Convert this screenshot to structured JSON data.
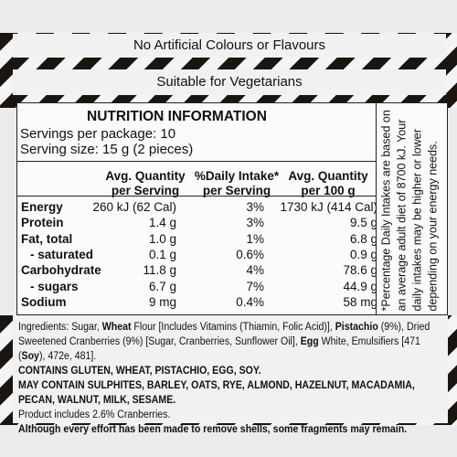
{
  "banner_top": "No Artificial Colours or Flavours",
  "banner_second": "Suitable for Vegetarians",
  "nutrition": {
    "title": "NUTRITION INFORMATION",
    "servings": "Servings per package: 10",
    "serving_size": "Serving size: 15 g (2 pieces)",
    "headers": [
      [
        "Avg. Quantity",
        "per Serving"
      ],
      [
        "%Daily Intake*",
        "per Serving"
      ],
      [
        "Avg. Quantity",
        "per 100 g"
      ]
    ],
    "rows": [
      [
        "Energy",
        "260 kJ (62 Cal)",
        "3%",
        "1730 kJ (414 Cal)"
      ],
      [
        "Protein",
        "1.4 g",
        "3%",
        "9.5 g"
      ],
      [
        "Fat, total",
        "1.0 g",
        "1%",
        "6.8 g"
      ],
      [
        "- saturated",
        "0.1 g",
        "0.6%",
        "0.9 g"
      ],
      [
        "Carbohydrate",
        "11.8 g",
        "4%",
        "78.6 g"
      ],
      [
        "- sugars",
        "6.7 g",
        "7%",
        "44.9 g"
      ],
      [
        "Sodium",
        "9 mg",
        "0.4%",
        "58 mg"
      ]
    ],
    "footnote": "*Percentage Daily Intakes are based on an average adult diet of 8700 kJ. Your daily intakes may be higher or lower depending on your energy needs."
  },
  "ingredients": {
    "parts": [
      "Ingredients: Sugar, ",
      "Wheat",
      " Flour [Includes Vitamins (Thiamin, Folic Acid)], ",
      "Pistachio",
      " (9%), Dried Sweetened Cranberries (9%) [Sugar, Cranberries, Sunflower Oil], ",
      "Egg",
      " White, Emulsifiers [471 (",
      "Soy",
      "), 472e, 481]."
    ],
    "contains": "CONTAINS GLUTEN, WHEAT, PISTACHIO, EGG, SOY.",
    "may_contain": "MAY CONTAIN SULPHITES, BARLEY, OATS, RYE, ALMOND, HAZELNUT, MACADAMIA, PECAN, WALNUT, MILK, SESAME.",
    "product_includes": "Product includes 2.6% Cranberries.",
    "shells": "Although every effort has been made to remove shells, some fragments may remain."
  }
}
